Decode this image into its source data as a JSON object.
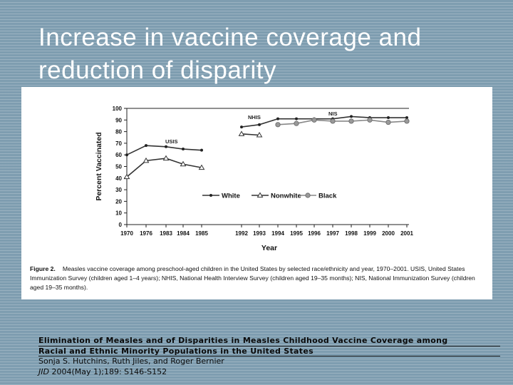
{
  "slide": {
    "title_line1": "Increase in vaccine coverage and",
    "title_line2": "reduction of disparity"
  },
  "figure": {
    "caption_label": "Figure 2.",
    "caption_text": "Measles vaccine coverage among preschool-aged children in the United States by selected race/ethnicity and year, 1970–2001. USIS, United States Immunization Survey (children aged 1–4 years); NHIS, National Health Interview Survey (children aged 19–35 months); NIS, National Immunization Survey (children aged 19–35 months)."
  },
  "citation": {
    "title_line1": "Elimination of Measles and of Disparities in Measles Childhood Vaccine Coverage among",
    "title_line2": "Racial and Ethnic Minority Populations in the United States",
    "authors": "Sonja S. Hutchins, Ruth Jiles, and Roger Bernier",
    "journal": "JID",
    "details": " 2004(May 1);189: S146-S152"
  },
  "chart_data": {
    "type": "line",
    "categories": [
      "1970",
      "1976",
      "1983",
      "1984",
      "1985",
      "1992",
      "1993",
      "1994",
      "1995",
      "1996",
      "1997",
      "1998",
      "1999",
      "2000",
      "2001"
    ],
    "xlabel": "Year",
    "ylabel": "Percent Vaccinated",
    "ylim": [
      0,
      100
    ],
    "yticks": [
      0,
      10,
      20,
      30,
      40,
      50,
      60,
      70,
      80,
      90,
      100
    ],
    "segments": [
      {
        "label": "USIS",
        "from": 0,
        "to": 4
      },
      {
        "label": "NHIS",
        "from": 5,
        "to": 7
      },
      {
        "label": "NIS",
        "from": 7,
        "to": 14
      }
    ],
    "series": [
      {
        "name": "White",
        "marker": "dot",
        "color": "#333333",
        "values": [
          60,
          68,
          67,
          65,
          64,
          84,
          86,
          91,
          91,
          91,
          91,
          93,
          92,
          92,
          92
        ]
      },
      {
        "name": "Nonwhite",
        "marker": "triangle",
        "color": "#333333",
        "values": [
          41,
          55,
          57,
          52,
          49,
          78,
          77,
          null,
          null,
          null,
          null,
          null,
          null,
          null,
          null
        ]
      },
      {
        "name": "Black",
        "marker": "circle",
        "color": "#888888",
        "values": [
          null,
          null,
          null,
          null,
          null,
          null,
          null,
          86,
          87,
          90,
          89,
          89,
          90,
          88,
          89
        ]
      }
    ],
    "legend_position": "inside-middle"
  }
}
